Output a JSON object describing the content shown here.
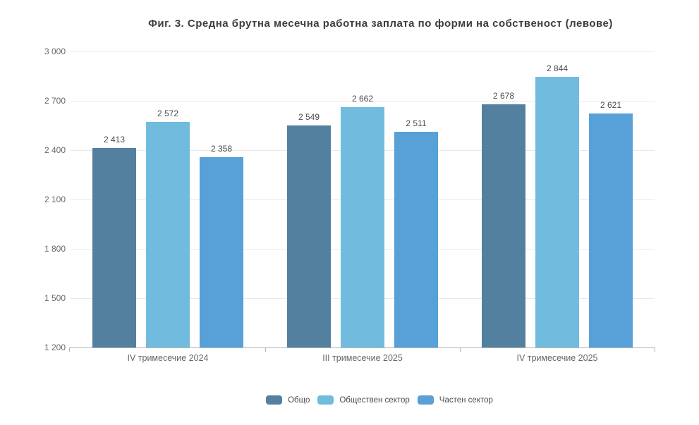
{
  "chart_data": {
    "type": "bar",
    "title": "Фиг. 3. Средна брутна месечна работна заплата по форми на собственост (левове)",
    "categories": [
      "IV тримесечие 2024",
      "III тримесечие 2025",
      "IV тримесечие 2025"
    ],
    "series": [
      {
        "name": "Общо",
        "color": "#54809f",
        "values": [
          2413,
          2549,
          2678
        ]
      },
      {
        "name": "Обществен сектор",
        "color": "#71bbdf",
        "values": [
          2572,
          2662,
          2844
        ]
      },
      {
        "name": "Частен сектор",
        "color": "#57a0d8",
        "values": [
          2358,
          2511,
          2621
        ]
      }
    ],
    "ylabel": "",
    "xlabel": "",
    "ylim": [
      1200,
      3000
    ],
    "ytick_step": 300,
    "ytick_labels": [
      "1 200",
      "1 500",
      "1 800",
      "2 100",
      "2 400",
      "2 700",
      "3 000"
    ],
    "value_labels": [
      "2 413",
      "2 572",
      "2 358",
      "2 549",
      "2 662",
      "2 511",
      "2 678",
      "2 844",
      "2 621"
    ],
    "grid": true,
    "legend_position": "bottom"
  },
  "colors": {
    "background": "#ffffff",
    "title_text": "#3d3d3d",
    "axis_text": "#666666",
    "value_label_text": "#4b4b4b",
    "legend_text": "#4b4b4b",
    "gridline": "#e9e9e9",
    "axis_line": "#b3b3b3"
  }
}
